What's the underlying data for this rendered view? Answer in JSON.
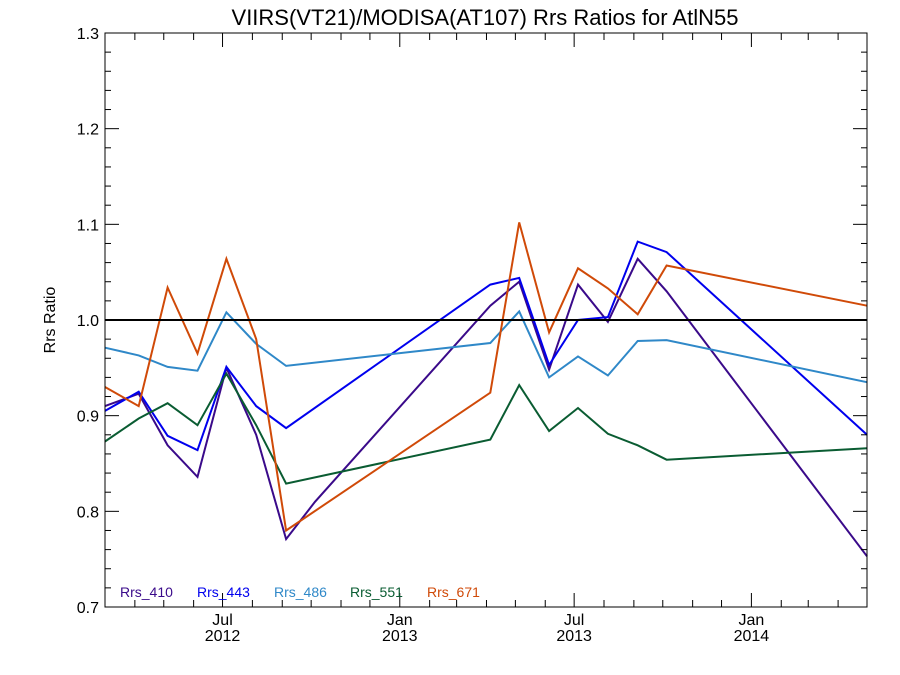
{
  "chart_data": {
    "type": "line",
    "title": "VIIRS(VT21)/MODISA(AT107)  Rrs Ratios for AtlN55",
    "xlabel": "",
    "ylabel": "Rrs Ratio",
    "xlim": [
      "2012-03-01",
      "2014-05-01"
    ],
    "ylim": [
      0.7,
      1.3
    ],
    "y_ticks": [
      "0.7",
      "0.8",
      "0.9",
      "1.0",
      "1.1",
      "1.2",
      "1.3"
    ],
    "x_ticks": [
      {
        "date": "2012-07-01",
        "label_top": "Jul",
        "label_bottom": "2012"
      },
      {
        "date": "2013-01-01",
        "label_top": "Jan",
        "label_bottom": "2013"
      },
      {
        "date": "2013-07-01",
        "label_top": "Jul",
        "label_bottom": "2013"
      },
      {
        "date": "2014-01-01",
        "label_top": "Jan",
        "label_bottom": "2014"
      }
    ],
    "x_minor_ticks": [
      "2012-04-01",
      "2012-05-01",
      "2012-06-01",
      "2012-08-01",
      "2012-09-01",
      "2012-10-01",
      "2012-11-01",
      "2012-12-01",
      "2013-02-01",
      "2013-03-01",
      "2013-04-01",
      "2013-05-01",
      "2013-06-01",
      "2013-08-01",
      "2013-09-01",
      "2013-10-01",
      "2013-11-01",
      "2013-12-01",
      "2014-02-01",
      "2014-03-01",
      "2014-04-01"
    ],
    "reference_line": 1.0,
    "legend_placement": "bottom-left",
    "grid": false,
    "series": [
      {
        "name": "Rrs_410",
        "color": "#3a0a8a",
        "x": [
          "2012-03-01",
          "2012-04-05",
          "2012-05-05",
          "2012-06-05",
          "2012-07-05",
          "2012-08-05",
          "2012-09-05",
          "2012-10-05",
          "2013-04-05",
          "2013-05-05",
          "2013-06-05",
          "2013-07-05",
          "2013-08-05",
          "2013-09-05",
          "2013-10-05",
          "2014-05-01"
        ],
        "y": [
          0.91,
          0.923,
          0.869,
          0.836,
          0.95,
          0.88,
          0.771,
          0.81,
          1.015,
          1.04,
          0.948,
          1.037,
          0.998,
          1.064,
          1.03,
          0.753
        ]
      },
      {
        "name": "Rrs_443",
        "color": "#0000ee",
        "x": [
          "2012-03-01",
          "2012-04-05",
          "2012-05-05",
          "2012-06-05",
          "2012-07-05",
          "2012-08-05",
          "2012-09-05",
          "2013-04-05",
          "2013-05-05",
          "2013-06-05",
          "2013-07-05",
          "2013-08-05",
          "2013-09-05",
          "2013-10-05",
          "2014-05-01"
        ],
        "y": [
          0.905,
          0.925,
          0.879,
          0.864,
          0.951,
          0.91,
          0.887,
          1.037,
          1.044,
          0.953,
          1.0,
          1.003,
          1.082,
          1.071,
          0.88
        ]
      },
      {
        "name": "Rrs_486",
        "color": "#2f88c8",
        "x": [
          "2012-03-01",
          "2012-04-05",
          "2012-05-05",
          "2012-06-05",
          "2012-07-05",
          "2012-08-05",
          "2012-09-05",
          "2013-04-05",
          "2013-05-05",
          "2013-06-05",
          "2013-07-05",
          "2013-08-05",
          "2013-09-05",
          "2013-10-05",
          "2014-05-01"
        ],
        "y": [
          0.971,
          0.963,
          0.951,
          0.947,
          1.008,
          0.975,
          0.952,
          0.976,
          1.009,
          0.94,
          0.962,
          0.942,
          0.978,
          0.979,
          0.935
        ]
      },
      {
        "name": "Rrs_551",
        "color": "#0a5c32",
        "x": [
          "2012-03-01",
          "2012-04-05",
          "2012-05-05",
          "2012-06-05",
          "2012-07-05",
          "2012-08-05",
          "2012-09-05",
          "2013-04-05",
          "2013-05-05",
          "2013-06-05",
          "2013-07-05",
          "2013-08-05",
          "2013-09-05",
          "2013-10-05",
          "2014-05-01"
        ],
        "y": [
          0.873,
          0.897,
          0.913,
          0.89,
          0.944,
          0.89,
          0.829,
          0.875,
          0.932,
          0.884,
          0.908,
          0.881,
          0.869,
          0.854,
          0.866
        ]
      },
      {
        "name": "Rrs_671",
        "color": "#d04a08",
        "x": [
          "2012-03-01",
          "2012-04-05",
          "2012-05-05",
          "2012-06-05",
          "2012-07-05",
          "2012-08-05",
          "2012-09-05",
          "2013-04-05",
          "2013-05-05",
          "2013-06-05",
          "2013-07-05",
          "2013-08-05",
          "2013-09-05",
          "2013-10-05",
          "2014-05-01"
        ],
        "y": [
          0.93,
          0.91,
          1.034,
          0.965,
          1.064,
          0.98,
          0.78,
          0.924,
          1.102,
          0.987,
          1.054,
          1.033,
          1.006,
          1.057,
          1.015
        ]
      }
    ]
  }
}
